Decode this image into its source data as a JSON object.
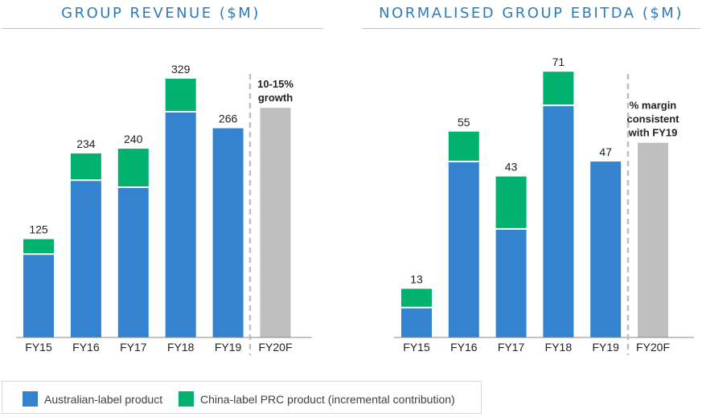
{
  "colors": {
    "australian": "#3483cf",
    "china": "#00b26d",
    "forecast": "#bfbfbf",
    "title": "#2b7bc0",
    "axis": "#888888",
    "divider": "#bfbfbf"
  },
  "legend": {
    "items": [
      {
        "label": "Australian-label product",
        "color": "#3483cf"
      },
      {
        "label": "China-label PRC product (incremental contribution)",
        "color": "#00b26d"
      }
    ]
  },
  "chart_data": [
    {
      "type": "bar",
      "stacked": true,
      "title": "GROUP REVENUE ($M)",
      "categories": [
        "FY15",
        "FY16",
        "FY17",
        "FY18",
        "FY19",
        "FY20F"
      ],
      "series": [
        {
          "name": "Australian-label product",
          "values": [
            106,
            200,
            191,
            287,
            266,
            null
          ]
        },
        {
          "name": "China-label PRC product (incremental contribution)",
          "values": [
            19,
            34,
            49,
            42,
            0,
            null
          ]
        }
      ],
      "totals_labels": [
        "125",
        "234",
        "240",
        "329",
        "266",
        ""
      ],
      "forecast": {
        "category": "FY20F",
        "value": 292,
        "annotation": [
          "10-15%",
          "growth"
        ]
      },
      "ylim": [
        0,
        380
      ]
    },
    {
      "type": "bar",
      "stacked": true,
      "title": "NORMALISED GROUP EBITDA ($M)",
      "categories": [
        "FY15",
        "FY16",
        "FY17",
        "FY18",
        "FY19",
        "FY20F"
      ],
      "series": [
        {
          "name": "Australian-label product",
          "values": [
            8,
            47,
            29,
            62,
            47,
            null
          ]
        },
        {
          "name": "China-label PRC product (incremental contribution)",
          "values": [
            5,
            8,
            14,
            9,
            0,
            null
          ]
        }
      ],
      "totals_labels": [
        "13",
        "55",
        "43",
        "71",
        "47",
        ""
      ],
      "forecast": {
        "category": "FY20F",
        "value": 52,
        "annotation": [
          "% margin",
          "consistent",
          "with FY19"
        ]
      },
      "ylim": [
        0,
        85
      ]
    }
  ]
}
